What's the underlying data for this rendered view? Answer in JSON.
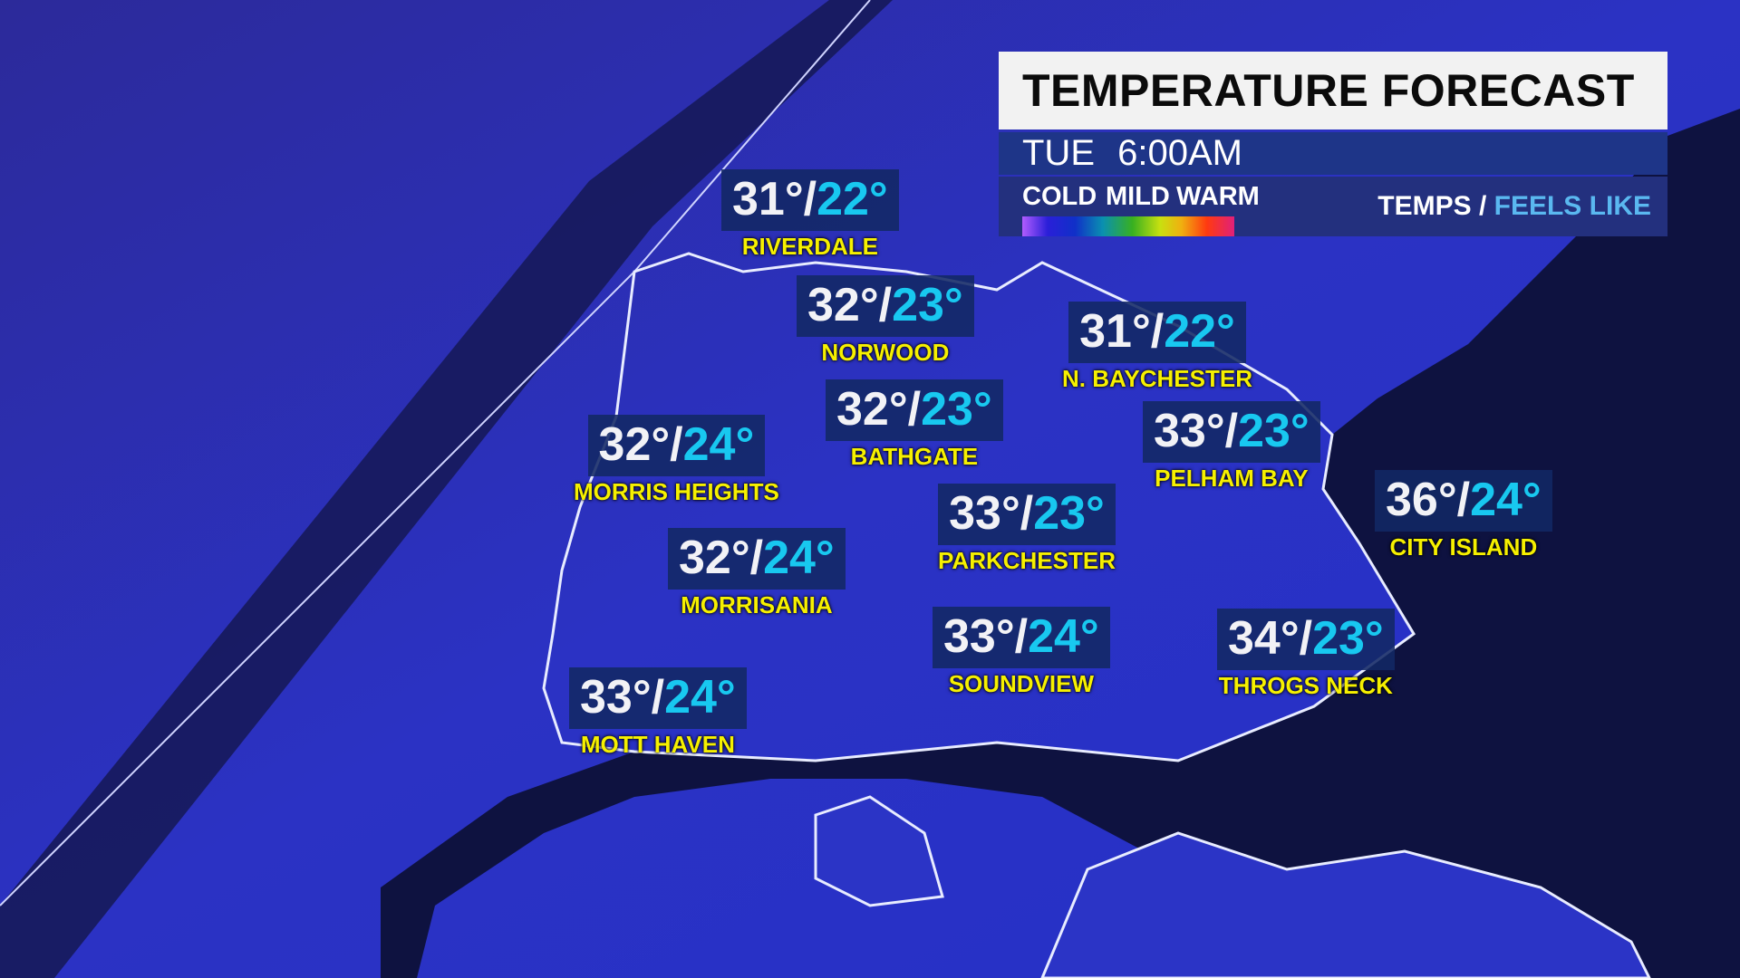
{
  "header": {
    "title": "TEMPERATURE FORECAST",
    "day": "TUE",
    "time": "6:00AM"
  },
  "legend": {
    "cold": "COLD",
    "mild": "MILD",
    "warm": "WARM",
    "temps": "TEMPS",
    "separator": "/",
    "feels_like": "FEELS LIKE"
  },
  "colors": {
    "temp": "#f2f2f6",
    "feels_like": "#18c8f0",
    "location_name": "#f6f000",
    "land": "#2a2fb8",
    "water": "#0e1240"
  },
  "locations": [
    {
      "name": "RIVERDALE",
      "temp": "31°",
      "sep": "/",
      "feels": "22°"
    },
    {
      "name": "NORWOOD",
      "temp": "32°",
      "sep": "/",
      "feels": "23°"
    },
    {
      "name": "N. BAYCHESTER",
      "temp": "31°",
      "sep": "/",
      "feels": "22°"
    },
    {
      "name": "BATHGATE",
      "temp": "32°",
      "sep": "/",
      "feels": "23°"
    },
    {
      "name": "MORRIS HEIGHTS",
      "temp": "32°",
      "sep": "/",
      "feels": "24°"
    },
    {
      "name": "PELHAM BAY",
      "temp": "33°",
      "sep": "/",
      "feels": "23°"
    },
    {
      "name": "CITY ISLAND",
      "temp": "36°",
      "sep": "/",
      "feels": "24°"
    },
    {
      "name": "PARKCHESTER",
      "temp": "33°",
      "sep": "/",
      "feels": "23°"
    },
    {
      "name": "MORRISANIA",
      "temp": "32°",
      "sep": "/",
      "feels": "24°"
    },
    {
      "name": "SOUNDVIEW",
      "temp": "33°",
      "sep": "/",
      "feels": "24°"
    },
    {
      "name": "THROGS NECK",
      "temp": "34°",
      "sep": "/",
      "feels": "23°"
    },
    {
      "name": "MOTT HAVEN",
      "temp": "33°",
      "sep": "/",
      "feels": "24°"
    }
  ]
}
